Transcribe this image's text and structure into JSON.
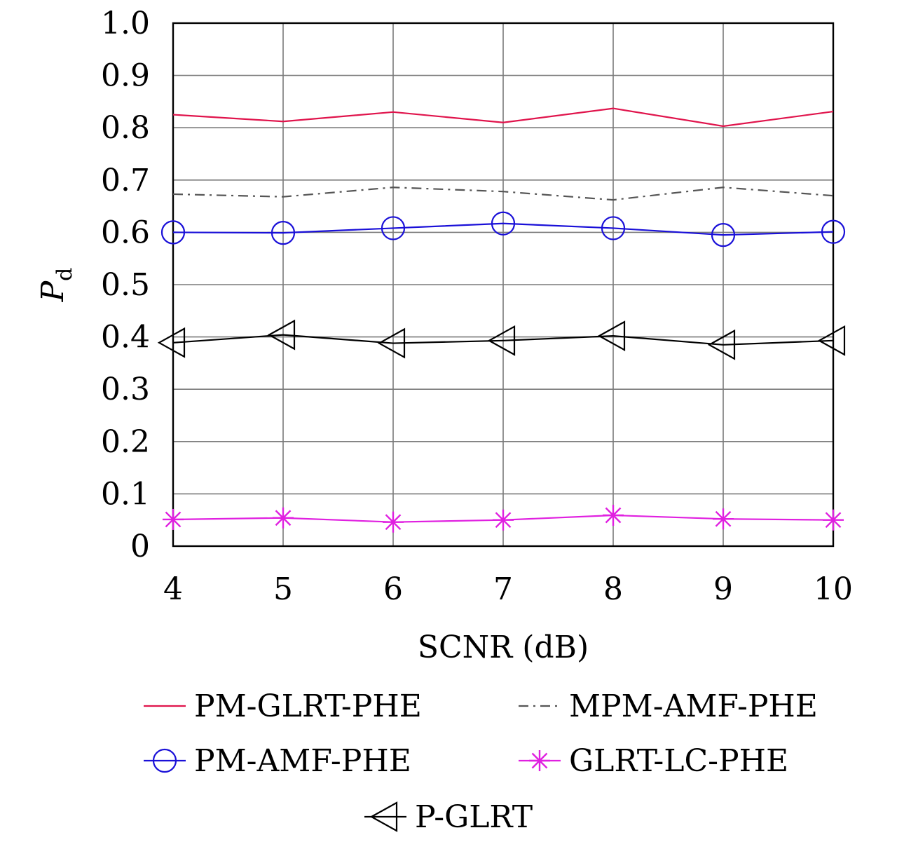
{
  "chart_data": {
    "type": "line",
    "xlabel": "SCNR (dB)",
    "ylabel": "P",
    "ylabel_subscript": "d",
    "x": [
      4,
      5,
      6,
      7,
      8,
      9,
      10
    ],
    "x_ticks": [
      "4",
      "5",
      "6",
      "7",
      "8",
      "9",
      "10"
    ],
    "y_ticks": [
      "0",
      "0.1",
      "0.2",
      "0.3",
      "0.4",
      "0.5",
      "0.6",
      "0.7",
      "0.8",
      "0.9",
      "1.0"
    ],
    "xlim": [
      4,
      10
    ],
    "ylim": [
      0,
      1
    ],
    "grid": true,
    "legend_position": "bottom",
    "series": [
      {
        "name": "PM-GLRT-PHE",
        "color": "#e0144c",
        "line": "solid",
        "marker": "none",
        "values": [
          0.825,
          0.812,
          0.83,
          0.81,
          0.837,
          0.803,
          0.831
        ]
      },
      {
        "name": "MPM-AMF-PHE",
        "color": "#555555",
        "line": "dashdot",
        "marker": "none",
        "values": [
          0.673,
          0.668,
          0.686,
          0.678,
          0.662,
          0.686,
          0.67
        ]
      },
      {
        "name": "PM-AMF-PHE",
        "color": "#1a10d8",
        "line": "solid",
        "marker": "circle",
        "values": [
          0.6,
          0.599,
          0.608,
          0.617,
          0.608,
          0.595,
          0.601
        ]
      },
      {
        "name": "GLRT-LC-PHE",
        "color": "#e020e0",
        "line": "solid",
        "marker": "star",
        "values": [
          0.051,
          0.054,
          0.046,
          0.05,
          0.059,
          0.052,
          0.05
        ]
      },
      {
        "name": "P-GLRT",
        "color": "#000000",
        "line": "solid",
        "marker": "triangle-left",
        "values": [
          0.389,
          0.404,
          0.388,
          0.393,
          0.402,
          0.385,
          0.393
        ]
      }
    ]
  }
}
